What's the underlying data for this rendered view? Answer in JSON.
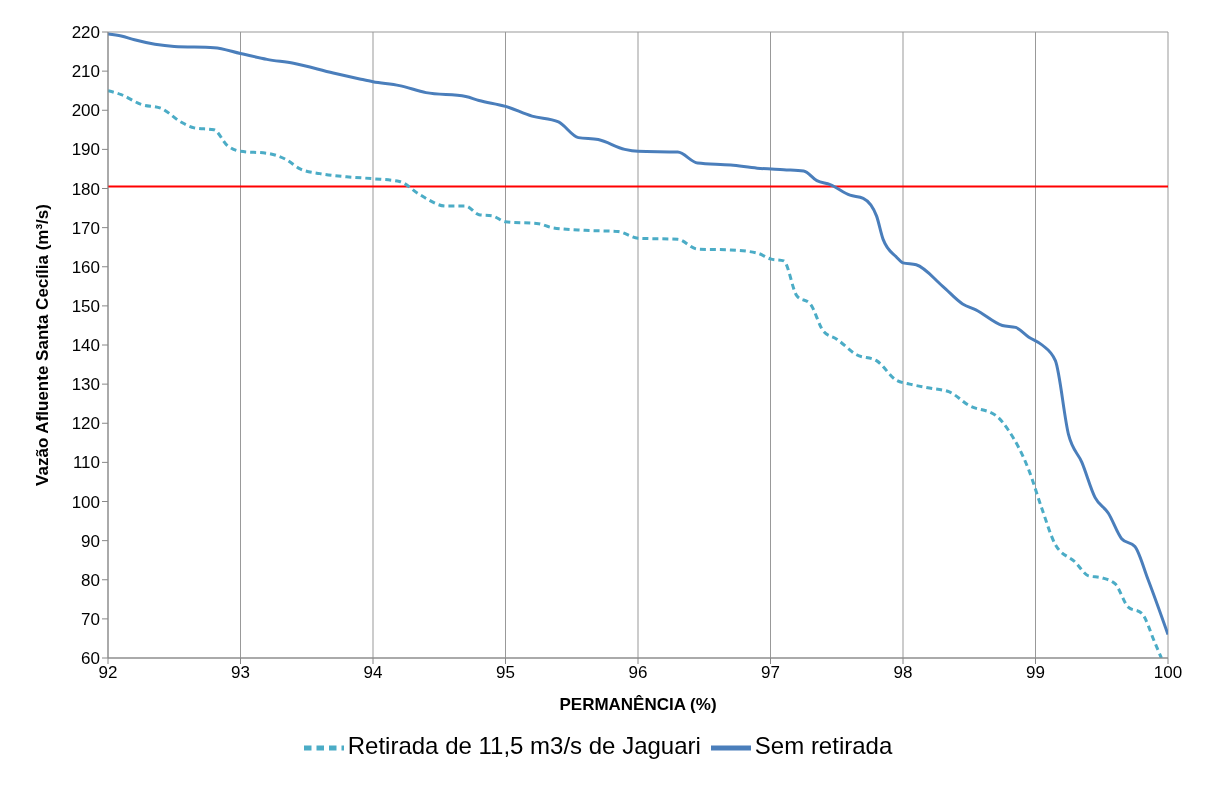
{
  "chart_data": {
    "type": "line",
    "xlabel": "PERMANÊNCIA (%)",
    "ylabel": "Vazão Afluente Santa Cecília (m³/s)",
    "xlim": [
      92,
      100
    ],
    "xticks": [
      92,
      93,
      94,
      95,
      96,
      97,
      98,
      99,
      100
    ],
    "ylim": [
      60,
      220
    ],
    "yticks": [
      60,
      70,
      80,
      90,
      100,
      110,
      120,
      130,
      140,
      150,
      160,
      170,
      180,
      190,
      200,
      210,
      220
    ],
    "grid": true,
    "legend": "bottom",
    "marker": "none",
    "ref_lines": [
      {
        "axis": "y",
        "value": 180.5,
        "color": "#ff0000"
      }
    ],
    "series": [
      {
        "name": "Sem retirada",
        "color": "#4a7ebb",
        "line_style": "solid",
        "x": [
          92,
          92.1,
          92.2,
          92.5,
          92.8,
          93.0,
          93.2,
          93.4,
          93.7,
          93.9,
          94.0,
          94.2,
          94.4,
          94.7,
          94.8,
          95.0,
          95.2,
          95.4,
          95.55,
          95.7,
          95.9,
          96.0,
          96.3,
          96.45,
          96.7,
          96.9,
          97.1,
          97.25,
          97.35,
          97.45,
          97.6,
          97.7,
          97.8,
          97.85,
          97.95,
          98.0,
          98.1,
          98.3,
          98.45,
          98.55,
          98.75,
          98.85,
          98.95,
          99.05,
          99.15,
          99.25,
          99.35,
          99.45,
          99.55,
          99.65,
          99.75,
          99.85,
          100
        ],
        "values": [
          219.5,
          219,
          218,
          216.3,
          216,
          214.5,
          213,
          212,
          209.5,
          208,
          207.3,
          206.3,
          204.5,
          203.5,
          202.5,
          201,
          198.5,
          197,
          193,
          192.5,
          190,
          189.5,
          189.3,
          186.5,
          186,
          185.2,
          184.8,
          184.5,
          182,
          181,
          178.3,
          177.5,
          173,
          167,
          162.5,
          161,
          160.5,
          155,
          150.5,
          149,
          145,
          144.5,
          142,
          140,
          136,
          117,
          110,
          101,
          97,
          90.5,
          88.5,
          80,
          66
        ]
      },
      {
        "name": "Retirada de 11,5 m3/s de Jaguari",
        "color": "#4bacc6",
        "line_style": "dashed",
        "x": [
          92,
          92.1,
          92.25,
          92.4,
          92.55,
          92.65,
          92.8,
          92.9,
          93.0,
          93.2,
          93.35,
          93.45,
          93.6,
          93.8,
          94.0,
          94.2,
          94.35,
          94.55,
          94.7,
          94.8,
          94.9,
          95.0,
          95.25,
          95.35,
          95.6,
          95.85,
          96.0,
          96.3,
          96.45,
          96.7,
          96.9,
          97.0,
          97.1,
          97.2,
          97.3,
          97.4,
          97.5,
          97.65,
          97.8,
          97.95,
          98.05,
          98.2,
          98.35,
          98.5,
          98.7,
          98.8,
          98.95,
          99.05,
          99.15,
          99.3,
          99.4,
          99.5,
          99.6,
          99.7,
          99.8,
          99.9,
          99.95
        ],
        "values": [
          205,
          204,
          201.5,
          200.5,
          197,
          195.5,
          195,
          191,
          189.5,
          189,
          187.3,
          185,
          183.8,
          183,
          182.5,
          181.8,
          178.5,
          175.5,
          175.5,
          173.3,
          173,
          171.5,
          171,
          170,
          169.3,
          169,
          167.3,
          167,
          164.5,
          164.3,
          163.5,
          162,
          161.5,
          152.5,
          150.5,
          143.5,
          141.5,
          137.5,
          136,
          131,
          130,
          129,
          128,
          124.5,
          122,
          118,
          108,
          98,
          89,
          84.5,
          81,
          80.5,
          79,
          73,
          71.5,
          64,
          60
        ]
      }
    ]
  }
}
